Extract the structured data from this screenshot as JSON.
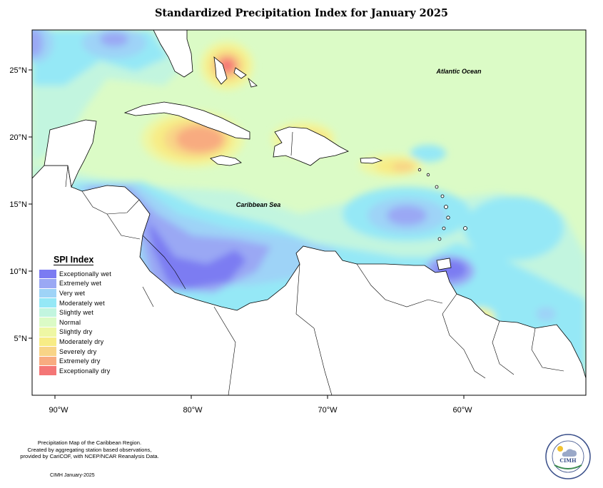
{
  "title": "Standardized Precipitation Index for January 2025",
  "axes": {
    "lon_ticks": [
      "90°W",
      "80°W",
      "70°W",
      "60°W"
    ],
    "lat_ticks": [
      "25°N",
      "20°N",
      "15°N",
      "10°N",
      "5°N"
    ]
  },
  "labels": {
    "atlantic": "Atlantic Ocean",
    "caribbean": "Caribbean Sea"
  },
  "legend": {
    "title": "SPI Index",
    "items": [
      {
        "label": "Exceptionally wet",
        "color": "#7b7bf2"
      },
      {
        "label": "Extremely wet",
        "color": "#9aa8f4"
      },
      {
        "label": "Very wet",
        "color": "#9ed3f7"
      },
      {
        "label": "Moderately wet",
        "color": "#95e8f6"
      },
      {
        "label": "Slightly wet",
        "color": "#c2f5df"
      },
      {
        "label": "Normal",
        "color": "#dbfbc6"
      },
      {
        "label": "Slightly dry",
        "color": "#eef7a4"
      },
      {
        "label": "Moderately dry",
        "color": "#f7ec86"
      },
      {
        "label": "Severely dry",
        "color": "#f8d487"
      },
      {
        "label": "Extremely dry",
        "color": "#f8ab80"
      },
      {
        "label": "Exceptionally dry",
        "color": "#f47676"
      }
    ]
  },
  "footer": {
    "lines": [
      "Precipitation Map of the Caribbean Region.",
      "Created by aggregating station based observations,",
      "provided by CariCOF, with NCEP/NCAR Reanalysis Data."
    ],
    "credit": "CIMH January-2025"
  },
  "logo": {
    "text": "CIMH"
  }
}
